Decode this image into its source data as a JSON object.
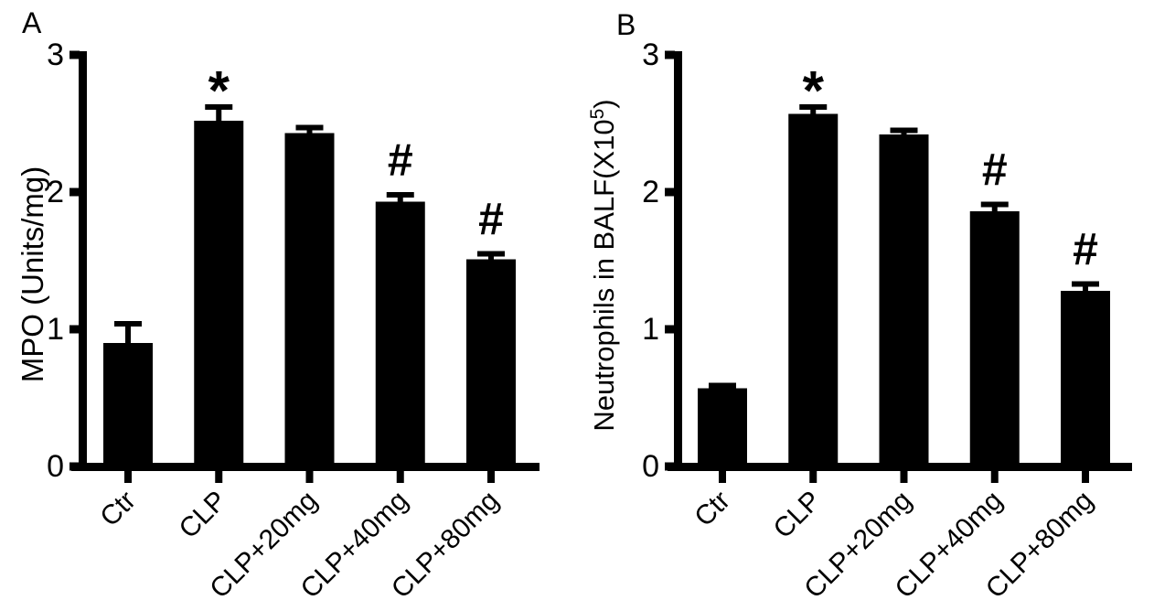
{
  "figure": {
    "background": "#ffffff",
    "bar_color": "#000000",
    "axis_color": "#000000"
  },
  "chart_data": [
    {
      "panel_letter": "A",
      "type": "bar",
      "title": "",
      "xlabel": "",
      "ylabel": "MPO (Units/mg)",
      "ylabel_parts": {
        "pre": "MPO (Units/mg)",
        "sup": "",
        "post": ""
      },
      "ylim": [
        0,
        3
      ],
      "yticks": [
        0,
        1,
        2,
        3
      ],
      "grid": "off",
      "legend": "none",
      "categories": [
        "Ctr",
        "CLP",
        "CLP+20mg",
        "CLP+40mg",
        "CLP+80mg"
      ],
      "values": [
        0.9,
        2.52,
        2.43,
        1.93,
        1.51
      ],
      "errors": [
        0.14,
        0.1,
        0.04,
        0.05,
        0.04
      ],
      "sig_markers": [
        "",
        "*",
        "",
        "#",
        "#"
      ],
      "bar_color": "#000000"
    },
    {
      "panel_letter": "B",
      "type": "bar",
      "title": "",
      "xlabel": "",
      "ylabel": "Neutrophils in BALF(X10⁵)",
      "ylabel_parts": {
        "pre": "Neutrophils in BALF(X10",
        "sup": "5",
        "post": ")"
      },
      "ylim": [
        0,
        3
      ],
      "yticks": [
        0,
        1,
        2,
        3
      ],
      "grid": "off",
      "legend": "none",
      "categories": [
        "Ctr",
        "CLP",
        "CLP+20mg",
        "CLP+40mg",
        "CLP+80mg"
      ],
      "values": [
        0.57,
        2.57,
        2.42,
        1.86,
        1.28
      ],
      "errors": [
        0.02,
        0.05,
        0.03,
        0.05,
        0.05
      ],
      "sig_markers": [
        "",
        "*",
        "",
        "#",
        "#"
      ],
      "bar_color": "#000000"
    }
  ]
}
